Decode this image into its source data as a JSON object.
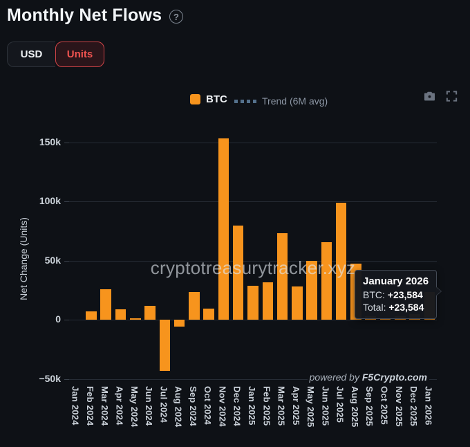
{
  "header": {
    "title": "Monthly Net Flows",
    "help_icon": "?"
  },
  "toggle": {
    "usd_label": "USD",
    "units_label": "Units",
    "selected": "Units"
  },
  "legend": {
    "btc_label": "BTC",
    "trend_label": "Trend (6M avg)"
  },
  "watermark": "cryptotreasurytracker.xyz",
  "powered_by": {
    "prefix": "powered by ",
    "brand": "F5Crypto.com"
  },
  "tooltip": {
    "title": "January 2026",
    "btc_label": "BTC: ",
    "btc_value": "+23,584",
    "total_label": "Total: ",
    "total_value": "+23,584"
  },
  "colors": {
    "background": "#0e1116",
    "bar": "#f7941d",
    "accent_red": "#ef5350",
    "grid": "#262c35",
    "text": "#ccd3da",
    "trend_icon": "#54718c"
  },
  "chart_data": {
    "type": "bar",
    "title": "Monthly Net Flows",
    "xlabel": "",
    "ylabel": "Net Change (Units)",
    "unit": "BTC units",
    "grid": true,
    "legend_position": "top",
    "categories": [
      "Jan 2024",
      "Feb 2024",
      "Mar 2024",
      "Apr 2024",
      "May 2024",
      "Jun 2024",
      "Jul 2024",
      "Aug 2024",
      "Sep 2024",
      "Oct 2024",
      "Nov 2024",
      "Dec 2024",
      "Jan 2025",
      "Feb 2025",
      "Mar 2025",
      "Apr 2025",
      "May 2025",
      "Jun 2025",
      "Jul 2025",
      "Aug 2025",
      "Sep 2025",
      "Oct 2025",
      "Nov 2025",
      "Dec 2025",
      "Jan 2026"
    ],
    "series": [
      {
        "name": "BTC",
        "color": "#f7941d",
        "values": [
          0,
          7000,
          25700,
          8800,
          1200,
          11700,
          -43300,
          -5800,
          23400,
          9400,
          153200,
          79500,
          28700,
          31800,
          73000,
          28000,
          49900,
          65700,
          98700,
          47400,
          3100,
          800,
          3200,
          4800,
          23584
        ]
      }
    ],
    "trend_series": {
      "name": "Trend (6M avg)",
      "visible": false
    },
    "highlighted_point": {
      "category": "Jan 2026",
      "btc": 23584,
      "total": 23584
    },
    "ytick_labels": [
      "150k",
      "100k",
      "50k",
      "0",
      "−50k"
    ],
    "ytick_values": [
      150000,
      100000,
      50000,
      0,
      -50000
    ],
    "ylim": [
      -57000,
      158000
    ]
  }
}
